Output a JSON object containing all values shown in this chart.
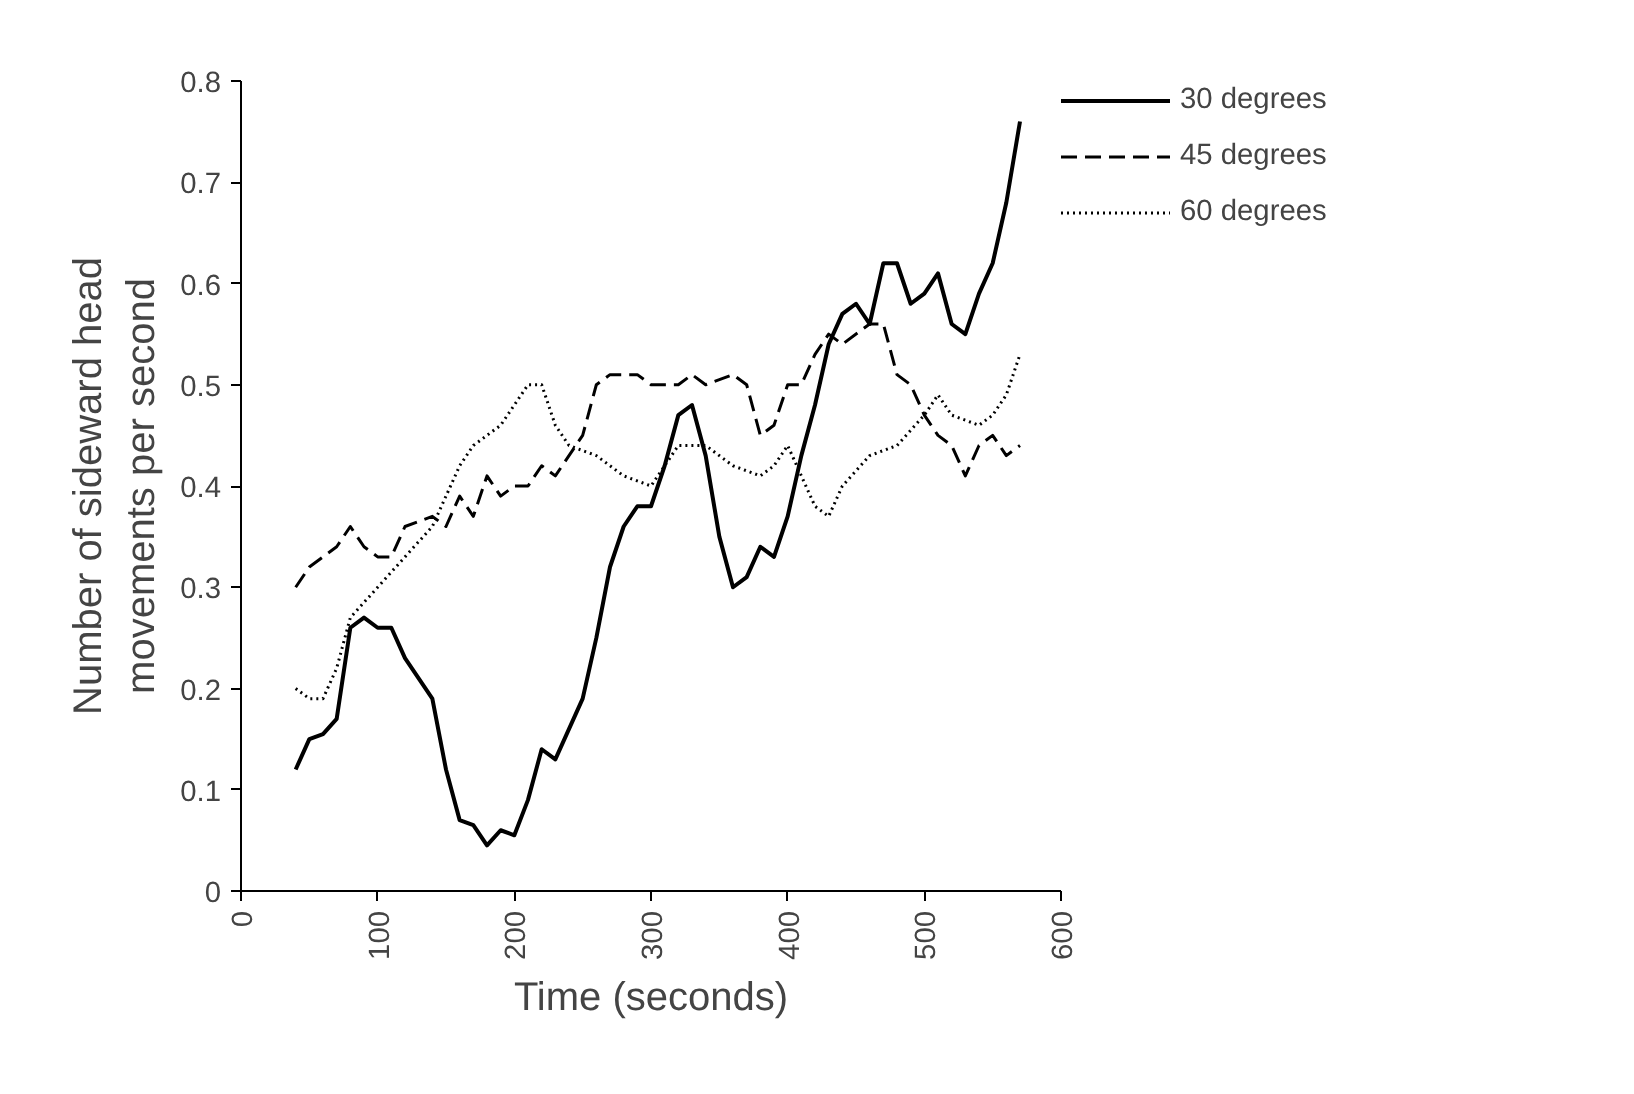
{
  "chart_data": {
    "type": "line",
    "xlabel": "Time (seconds)",
    "ylabel": "Number of sideward head\nmovements per second",
    "xlim": [
      0,
      600
    ],
    "xticks": [
      0,
      100,
      200,
      300,
      400,
      500,
      600
    ],
    "ylim": [
      0,
      0.8
    ],
    "yticks": [
      0,
      0.1,
      0.2,
      0.3,
      0.4,
      0.5,
      0.6,
      0.7,
      0.8
    ],
    "grid": false,
    "legend": "top right",
    "marker": "none",
    "series": [
      {
        "name": "30 degrees",
        "color": "#000000",
        "line_style": "solid",
        "x": [
          40,
          50,
          60,
          70,
          80,
          90,
          100,
          110,
          120,
          140,
          150,
          160,
          170,
          180,
          190,
          200,
          210,
          220,
          230,
          250,
          260,
          270,
          280,
          290,
          300,
          310,
          320,
          330,
          340,
          350,
          360,
          370,
          380,
          390,
          400,
          410,
          420,
          430,
          440,
          450,
          460,
          470,
          480,
          490,
          500,
          510,
          520,
          530,
          540,
          550,
          560,
          570
        ],
        "values": [
          0.12,
          0.15,
          0.155,
          0.17,
          0.26,
          0.27,
          0.26,
          0.26,
          0.23,
          0.19,
          0.12,
          0.07,
          0.065,
          0.045,
          0.06,
          0.055,
          0.09,
          0.14,
          0.13,
          0.19,
          0.25,
          0.32,
          0.36,
          0.38,
          0.38,
          0.42,
          0.47,
          0.48,
          0.43,
          0.35,
          0.3,
          0.31,
          0.34,
          0.33,
          0.37,
          0.43,
          0.48,
          0.54,
          0.57,
          0.58,
          0.56,
          0.62,
          0.62,
          0.58,
          0.59,
          0.61,
          0.56,
          0.55,
          0.59,
          0.62,
          0.68,
          0.76
        ]
      },
      {
        "name": "45 degrees",
        "color": "#000000",
        "line_style": "dashed",
        "x": [
          40,
          50,
          60,
          70,
          80,
          90,
          100,
          110,
          120,
          140,
          150,
          160,
          170,
          180,
          190,
          200,
          210,
          220,
          230,
          240,
          250,
          260,
          270,
          280,
          290,
          300,
          320,
          330,
          340,
          360,
          370,
          380,
          390,
          400,
          410,
          420,
          430,
          440,
          460,
          470,
          480,
          490,
          500,
          510,
          520,
          530,
          540,
          550,
          560,
          570
        ],
        "values": [
          0.3,
          0.32,
          0.33,
          0.34,
          0.36,
          0.34,
          0.33,
          0.33,
          0.36,
          0.37,
          0.36,
          0.39,
          0.37,
          0.41,
          0.39,
          0.4,
          0.4,
          0.42,
          0.41,
          0.43,
          0.45,
          0.5,
          0.51,
          0.51,
          0.51,
          0.5,
          0.5,
          0.51,
          0.5,
          0.51,
          0.5,
          0.45,
          0.46,
          0.5,
          0.5,
          0.53,
          0.55,
          0.54,
          0.56,
          0.56,
          0.51,
          0.5,
          0.47,
          0.45,
          0.44,
          0.41,
          0.44,
          0.45,
          0.43,
          0.44
        ]
      },
      {
        "name": "60 degrees",
        "color": "#000000",
        "line_style": "dotted",
        "x": [
          40,
          50,
          60,
          70,
          80,
          100,
          120,
          140,
          160,
          170,
          180,
          190,
          200,
          210,
          220,
          230,
          240,
          260,
          270,
          280,
          300,
          320,
          340,
          360,
          380,
          390,
          400,
          420,
          430,
          440,
          460,
          480,
          500,
          510,
          520,
          540,
          550,
          560,
          570
        ],
        "values": [
          0.2,
          0.19,
          0.19,
          0.22,
          0.27,
          0.3,
          0.33,
          0.36,
          0.42,
          0.44,
          0.45,
          0.46,
          0.48,
          0.5,
          0.5,
          0.46,
          0.44,
          0.43,
          0.42,
          0.41,
          0.4,
          0.44,
          0.44,
          0.42,
          0.41,
          0.42,
          0.44,
          0.38,
          0.37,
          0.4,
          0.43,
          0.44,
          0.47,
          0.49,
          0.47,
          0.46,
          0.47,
          0.49,
          0.53
        ]
      }
    ]
  }
}
